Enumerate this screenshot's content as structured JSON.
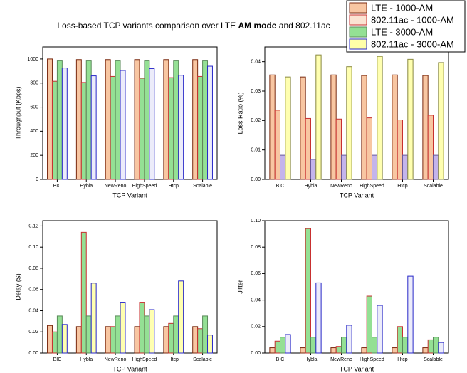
{
  "title_parts": [
    "Loss-based TCP variants comparison over LTE ",
    "AM mode",
    " and 802.11ac"
  ],
  "legend": {
    "entries": [
      {
        "name": "LTE - 1000-AM",
        "color": "#f8c6a2",
        "edge": "#7a2a10"
      },
      {
        "name": "802.11ac - 1000-AM",
        "color": "#fbe3d2",
        "edge": "#c83030"
      },
      {
        "name": "LTE - 3000-AM",
        "color": "#94e094",
        "edge": "#5a8a5a"
      },
      {
        "name": "802.11ac - 3000-AM",
        "color": "#ffffa8",
        "edge": "#2828c8"
      }
    ]
  },
  "chart_data": [
    {
      "type": "bar",
      "ylabel": "Throughput (Kbps)",
      "xlabel": "TCP Variant",
      "categories": [
        "BIC",
        "Hybla",
        "NewReno",
        "HighSpeed",
        "Htcp",
        "Scalable"
      ],
      "ylim": [
        0,
        1100
      ],
      "yticks": [
        0,
        200,
        400,
        600,
        800,
        1000
      ],
      "series": [
        {
          "color": "#f8c6a2",
          "edge": "#7a2a10",
          "values": [
            1000,
            995,
            995,
            995,
            995,
            995
          ]
        },
        {
          "color": "#94e094",
          "edge": "#c83030",
          "values": [
            815,
            805,
            855,
            840,
            845,
            855
          ]
        },
        {
          "color": "#94e094",
          "edge": "#5a8a5a",
          "values": [
            990,
            990,
            990,
            990,
            990,
            990
          ]
        },
        {
          "color": "#ececfa",
          "edge": "#2828c8",
          "values": [
            925,
            860,
            905,
            920,
            865,
            940
          ]
        }
      ]
    },
    {
      "type": "bar",
      "ylabel": "Loss Ratio (%)",
      "xlabel": "TCP Variant",
      "categories": [
        "BIC",
        "Hybla",
        "NewReno",
        "HighSpeed",
        "Htcp",
        "Scalable"
      ],
      "ylim": [
        0,
        0.045
      ],
      "yticks": [
        {
          "value": 0,
          "label": "0.00"
        },
        {
          "value": 0.01,
          "label": "0.01"
        },
        {
          "value": 0.02,
          "label": "0.02"
        },
        {
          "value": 0.03,
          "label": "0.03"
        },
        {
          "value": 0.04,
          "label": "0.04"
        }
      ],
      "series": [
        {
          "color": "#f8c6a2",
          "edge": "#7a2a10",
          "values": [
            0.0355,
            0.0348,
            0.0355,
            0.0353,
            0.0355,
            0.0353
          ]
        },
        {
          "color": "#f8c6a2",
          "edge": "#c83030",
          "values": [
            0.0235,
            0.0207,
            0.0205,
            0.0209,
            0.0202,
            0.0218
          ]
        },
        {
          "color": "#c4b4ec",
          "edge": "#6a5a9a",
          "values": [
            0.0082,
            0.0068,
            0.0082,
            0.0082,
            0.0082,
            0.0082
          ]
        },
        {
          "color": "#ffffb0",
          "edge": "#8a8a40",
          "values": [
            0.0348,
            0.0423,
            0.0383,
            0.0418,
            0.0408,
            0.0397
          ]
        }
      ]
    },
    {
      "type": "bar",
      "ylabel": "Delay (S)",
      "xlabel": "TCP Variant",
      "categories": [
        "BIC",
        "Hybla",
        "NewReno",
        "HighSpeed",
        "Htcp",
        "Scalable"
      ],
      "ylim": [
        0,
        0.125
      ],
      "yticks": [
        {
          "value": 0,
          "label": "0.00"
        },
        {
          "value": 0.02,
          "label": "0.02"
        },
        {
          "value": 0.04,
          "label": "0.04"
        },
        {
          "value": 0.06,
          "label": "0.06"
        },
        {
          "value": 0.08,
          "label": "0.08"
        },
        {
          "value": 0.1,
          "label": "0.10"
        },
        {
          "value": 0.12,
          "label": "0.12"
        }
      ],
      "series": [
        {
          "color": "#f8c6a2",
          "edge": "#7a2a10",
          "values": [
            0.026,
            0.025,
            0.025,
            0.025,
            0.025,
            0.025
          ]
        },
        {
          "color": "#94e094",
          "edge": "#c83030",
          "values": [
            0.02,
            0.114,
            0.025,
            0.048,
            0.028,
            0.023
          ]
        },
        {
          "color": "#94e094",
          "edge": "#5a8a5a",
          "values": [
            0.035,
            0.035,
            0.035,
            0.035,
            0.035,
            0.035
          ]
        },
        {
          "color": "#ffffb0",
          "edge": "#2828c8",
          "values": [
            0.027,
            0.066,
            0.048,
            0.041,
            0.068,
            0.017
          ]
        }
      ]
    },
    {
      "type": "bar",
      "ylabel": "Jitter",
      "xlabel": "TCP Variant",
      "categories": [
        "BIC",
        "Hybla",
        "NewReno",
        "HighSpeed",
        "Htcp",
        "Scalable"
      ],
      "ylim": [
        0,
        0.1
      ],
      "yticks": [
        {
          "value": 0,
          "label": "0.00"
        },
        {
          "value": 0.02,
          "label": "0.02"
        },
        {
          "value": 0.04,
          "label": "0.04"
        },
        {
          "value": 0.06,
          "label": "0.06"
        },
        {
          "value": 0.08,
          "label": "0.08"
        },
        {
          "value": 0.1,
          "label": "0.10"
        }
      ],
      "series": [
        {
          "color": "#f8c6a2",
          "edge": "#7a2a10",
          "values": [
            0.004,
            0.004,
            0.004,
            0.004,
            0.004,
            0.004
          ]
        },
        {
          "color": "#94e094",
          "edge": "#c83030",
          "values": [
            0.009,
            0.094,
            0.005,
            0.043,
            0.02,
            0.01
          ]
        },
        {
          "color": "#94e094",
          "edge": "#5a8a5a",
          "values": [
            0.012,
            0.012,
            0.012,
            0.012,
            0.012,
            0.012
          ]
        },
        {
          "color": "#ececfa",
          "edge": "#2828c8",
          "values": [
            0.014,
            0.053,
            0.021,
            0.036,
            0.058,
            0.008
          ]
        }
      ]
    }
  ]
}
